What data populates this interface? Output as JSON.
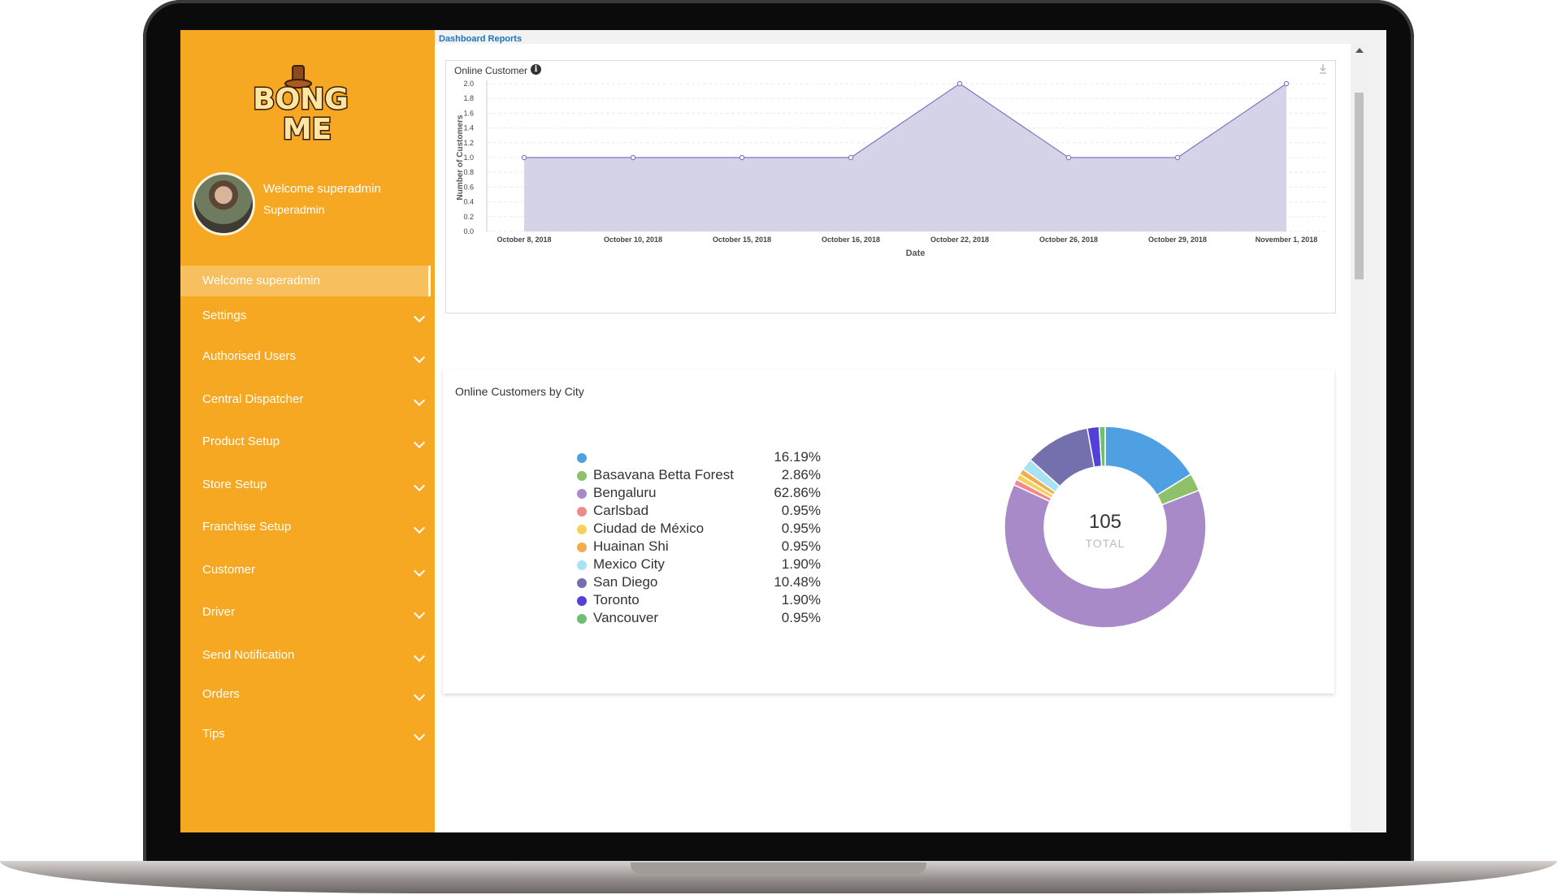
{
  "breadcrumb": "Dashboard Reports",
  "logo": {
    "text_line1": "BONG",
    "text_line2": "ME"
  },
  "user": {
    "welcome": "Welcome superadmin",
    "role": "Superadmin"
  },
  "sidebar": {
    "active_item": "Welcome superadmin",
    "items": [
      {
        "label": "Settings"
      },
      {
        "label": "Authorised Users"
      },
      {
        "label": "Central Dispatcher"
      },
      {
        "label": "Product Setup"
      },
      {
        "label": "Store Setup"
      },
      {
        "label": "Franchise Setup"
      },
      {
        "label": "Customer"
      },
      {
        "label": "Driver"
      },
      {
        "label": "Send Notification"
      },
      {
        "label": "Orders"
      },
      {
        "label": "Tips"
      }
    ]
  },
  "colors": {
    "sidebar_bg": "#f7a823",
    "area_fill": "#d4d3e8",
    "area_line": "#7c78c2"
  },
  "chart_data": [
    {
      "type": "area",
      "title": "Online Customer",
      "xlabel": "Date",
      "ylabel": "Number of Customers",
      "ylim": [
        0,
        2.0
      ],
      "yticks": [
        "0.0",
        "0.2",
        "0.4",
        "0.6",
        "0.8",
        "1.0",
        "1.2",
        "1.4",
        "1.6",
        "1.8",
        "2.0"
      ],
      "categories": [
        "October 8, 2018",
        "October 10, 2018",
        "October 15, 2018",
        "October 16, 2018",
        "October 22, 2018",
        "October 26, 2018",
        "October 29, 2018",
        "November 1, 2018"
      ],
      "values": [
        1,
        1,
        1,
        1,
        2,
        1,
        1,
        2
      ],
      "grid": true
    },
    {
      "type": "pie",
      "title": "Online Customers by City",
      "total": "105",
      "total_label": "TOTAL",
      "slices": [
        {
          "label": "",
          "pct": "16.19%",
          "value": 16.19,
          "color": "#4f9fe3"
        },
        {
          "label": "Basavana Betta Forest",
          "pct": "2.86%",
          "value": 2.86,
          "color": "#8fc06a"
        },
        {
          "label": "Bengaluru",
          "pct": "62.86%",
          "value": 62.86,
          "color": "#a88ac8"
        },
        {
          "label": "Carlsbad",
          "pct": "0.95%",
          "value": 0.95,
          "color": "#ef8a8a"
        },
        {
          "label": "Ciudad de México",
          "pct": "0.95%",
          "value": 0.95,
          "color": "#f7d25a"
        },
        {
          "label": "Huainan Shi",
          "pct": "0.95%",
          "value": 0.95,
          "color": "#f3ad4d"
        },
        {
          "label": "Mexico City",
          "pct": "1.90%",
          "value": 1.9,
          "color": "#a8e3f3"
        },
        {
          "label": "San Diego",
          "pct": "10.48%",
          "value": 10.48,
          "color": "#7470ad"
        },
        {
          "label": "Toronto",
          "pct": "1.90%",
          "value": 1.9,
          "color": "#5140d9"
        },
        {
          "label": "Vancouver",
          "pct": "0.95%",
          "value": 0.95,
          "color": "#6fbf73"
        }
      ]
    }
  ]
}
